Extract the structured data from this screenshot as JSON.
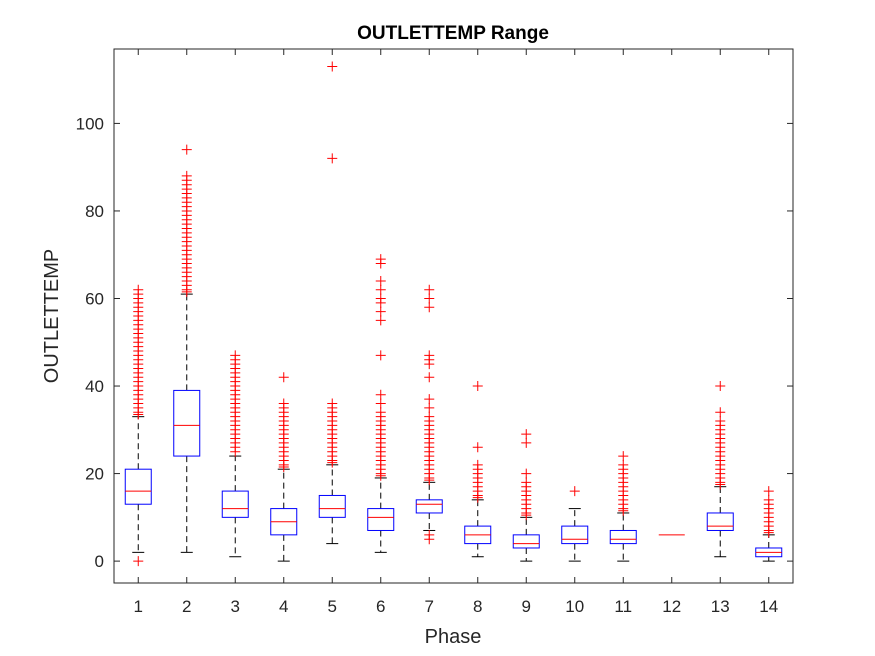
{
  "chart_data": {
    "type": "box",
    "title": "OUTLETTEMP Range",
    "xlabel": "Phase",
    "ylabel": "OUTLETTEMP",
    "categories": [
      "1",
      "2",
      "3",
      "4",
      "5",
      "6",
      "7",
      "8",
      "9",
      "10",
      "11",
      "12",
      "13",
      "14"
    ],
    "ylim": [
      -5,
      117
    ],
    "yticks": [
      0,
      20,
      40,
      60,
      80,
      100
    ],
    "grid": false,
    "colors": {
      "box": "#0000ff",
      "median": "#ff0000",
      "whisker": "#000000",
      "outlier": "#ff0000",
      "axes": "#262626"
    },
    "boxes": [
      {
        "category": "1",
        "min": 2,
        "q1": 13,
        "median": 16,
        "q3": 21,
        "max": 33,
        "outliers": [
          0,
          33.5,
          34,
          35,
          36,
          37,
          38,
          39,
          40,
          41,
          42,
          43,
          44,
          45,
          46,
          47,
          48,
          49,
          50,
          51,
          52,
          53,
          54,
          55,
          56,
          57,
          58,
          59,
          60,
          61,
          62
        ]
      },
      {
        "category": "2",
        "min": 2,
        "q1": 24,
        "median": 31,
        "q3": 39,
        "max": 61,
        "outliers": [
          61.5,
          62,
          63,
          64,
          65,
          66,
          67,
          68,
          69,
          70,
          71,
          72,
          73,
          74,
          75,
          76,
          77,
          78,
          79,
          80,
          81,
          82,
          83,
          84,
          85,
          86,
          87,
          88,
          94
        ]
      },
      {
        "category": "3",
        "min": 1,
        "q1": 10,
        "median": 12,
        "q3": 16,
        "max": 24,
        "outliers": [
          25,
          26,
          27,
          28,
          29,
          30,
          31,
          32,
          33,
          34,
          35,
          36,
          37,
          38,
          39,
          40,
          41,
          42,
          43,
          44,
          45,
          46,
          47
        ]
      },
      {
        "category": "4",
        "min": 0,
        "q1": 6,
        "median": 9,
        "q3": 12,
        "max": 21,
        "outliers": [
          21.5,
          22,
          23,
          24,
          25,
          26,
          27,
          28,
          29,
          30,
          31,
          32,
          33,
          34,
          35,
          36,
          42
        ]
      },
      {
        "category": "5",
        "min": 4,
        "q1": 10,
        "median": 12,
        "q3": 15,
        "max": 22,
        "outliers": [
          22.5,
          23,
          24,
          25,
          26,
          27,
          28,
          29,
          30,
          31,
          32,
          33,
          34,
          35,
          36,
          92,
          113
        ]
      },
      {
        "category": "6",
        "min": 2,
        "q1": 7,
        "median": 10,
        "q3": 12,
        "max": 19,
        "outliers": [
          19.5,
          20,
          21,
          22,
          23,
          24,
          25,
          26,
          27,
          28,
          29,
          30,
          31,
          32,
          33,
          34,
          36,
          38,
          47,
          55,
          57,
          59,
          60,
          62,
          64,
          68,
          69
        ]
      },
      {
        "category": "7",
        "min": 7,
        "q1": 11,
        "median": 13,
        "q3": 14,
        "max": 18,
        "outliers": [
          5,
          6,
          18.5,
          19,
          20,
          21,
          22,
          23,
          24,
          25,
          26,
          27,
          28,
          29,
          30,
          31,
          32,
          33,
          35,
          37,
          42,
          45,
          46,
          47,
          58,
          60,
          62
        ]
      },
      {
        "category": "8",
        "min": 1,
        "q1": 4,
        "median": 6,
        "q3": 8,
        "max": 14,
        "outliers": [
          14.5,
          15,
          16,
          17,
          18,
          19,
          20,
          21,
          22,
          26,
          40
        ]
      },
      {
        "category": "9",
        "min": 0,
        "q1": 3,
        "median": 4,
        "q3": 6,
        "max": 10,
        "outliers": [
          10.5,
          11,
          12,
          13,
          14,
          15,
          16,
          17,
          18,
          20,
          27,
          29
        ]
      },
      {
        "category": "10",
        "min": 0,
        "q1": 4,
        "median": 5,
        "q3": 8,
        "max": 12,
        "outliers": [
          16
        ]
      },
      {
        "category": "11",
        "min": 0,
        "q1": 4,
        "median": 5,
        "q3": 7,
        "max": 11,
        "outliers": [
          11.5,
          12,
          13,
          14,
          15,
          16,
          17,
          18,
          19,
          20,
          21,
          22,
          24
        ]
      },
      {
        "category": "12",
        "min": 6,
        "q1": 6,
        "median": 6,
        "q3": 6,
        "max": 6,
        "outliers": []
      },
      {
        "category": "13",
        "min": 1,
        "q1": 7,
        "median": 8,
        "q3": 11,
        "max": 17,
        "outliers": [
          17.5,
          18,
          19,
          20,
          21,
          22,
          23,
          24,
          25,
          26,
          27,
          28,
          29,
          30,
          31,
          32,
          34,
          40
        ]
      },
      {
        "category": "14",
        "min": 0,
        "q1": 1,
        "median": 2,
        "q3": 3,
        "max": 6,
        "outliers": [
          6.5,
          7,
          8,
          9,
          10,
          11,
          12,
          13,
          14,
          16
        ]
      }
    ]
  }
}
